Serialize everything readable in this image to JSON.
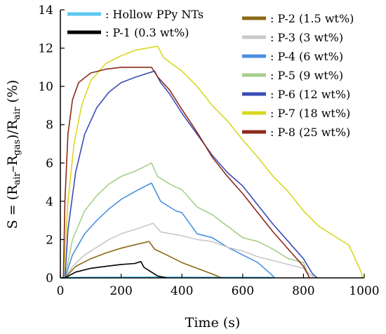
{
  "chart_data": {
    "type": "line",
    "xlabel": "Time (s)",
    "ylabel_parts": {
      "prefix": "S = (R",
      "sub1": "air",
      "dash": "–R",
      "sub2": "gas",
      "mid": ")/R",
      "sub3": "air",
      "suffix": " (%)"
    },
    "xlim": [
      0,
      1000
    ],
    "ylim": [
      0,
      14
    ],
    "x_ticks": [
      0,
      200,
      400,
      600,
      800,
      1000
    ],
    "y_ticks": [
      0,
      2,
      4,
      6,
      8,
      10,
      12,
      14
    ],
    "x_tick_labels": [
      "0",
      "200",
      "400",
      "600",
      "800",
      "1000"
    ],
    "y_tick_labels": [
      "0",
      "2",
      "4",
      "6",
      "8",
      "10",
      "12",
      "14"
    ],
    "grid": false,
    "legend_position": "inside-top",
    "series": [
      {
        "name": ": Hollow PPy NTs",
        "color": "#5bc8f0",
        "points": [
          [
            0,
            0
          ],
          [
            100,
            0.02
          ],
          [
            300,
            0.03
          ],
          [
            500,
            0.02
          ],
          [
            700,
            0.01
          ]
        ]
      },
      {
        "name": ": P-1 (0.3 wt%)",
        "color": "#000000",
        "points": [
          [
            15,
            0
          ],
          [
            50,
            0.3
          ],
          [
            100,
            0.5
          ],
          [
            150,
            0.6
          ],
          [
            200,
            0.7
          ],
          [
            245,
            0.75
          ],
          [
            265,
            0.85
          ],
          [
            275,
            0.55
          ],
          [
            300,
            0.3
          ],
          [
            320,
            0.1
          ],
          [
            350,
            0
          ]
        ]
      },
      {
        "name": ": P-2 (1.5 wt%)",
        "color": "#8b6914",
        "points": [
          [
            15,
            0
          ],
          [
            50,
            0.6
          ],
          [
            100,
            1.0
          ],
          [
            150,
            1.3
          ],
          [
            200,
            1.55
          ],
          [
            250,
            1.75
          ],
          [
            292,
            1.9
          ],
          [
            310,
            1.5
          ],
          [
            350,
            1.2
          ],
          [
            400,
            0.8
          ],
          [
            450,
            0.5
          ],
          [
            500,
            0.2
          ],
          [
            530,
            0
          ]
        ]
      },
      {
        "name": ": P-3 (3 wt%)",
        "color": "#c8c8c8",
        "points": [
          [
            15,
            0
          ],
          [
            40,
            0.6
          ],
          [
            80,
            1.2
          ],
          [
            120,
            1.6
          ],
          [
            160,
            2.0
          ],
          [
            200,
            2.3
          ],
          [
            250,
            2.55
          ],
          [
            305,
            2.85
          ],
          [
            330,
            2.4
          ],
          [
            400,
            2.2
          ],
          [
            450,
            2.0
          ],
          [
            500,
            1.9
          ],
          [
            550,
            1.6
          ],
          [
            600,
            1.4
          ],
          [
            650,
            1.1
          ],
          [
            700,
            0.9
          ],
          [
            750,
            0.7
          ],
          [
            800,
            0.5
          ],
          [
            835,
            0
          ]
        ]
      },
      {
        "name": ": P-4 (6 wt%)",
        "color": "#4a90e2",
        "points": [
          [
            15,
            0
          ],
          [
            40,
            1.2
          ],
          [
            80,
            2.3
          ],
          [
            120,
            3.0
          ],
          [
            160,
            3.6
          ],
          [
            200,
            4.1
          ],
          [
            250,
            4.55
          ],
          [
            300,
            4.95
          ],
          [
            330,
            4.0
          ],
          [
            380,
            3.5
          ],
          [
            400,
            3.4
          ],
          [
            450,
            2.3
          ],
          [
            500,
            2.1
          ],
          [
            550,
            1.6
          ],
          [
            600,
            1.2
          ],
          [
            650,
            0.8
          ],
          [
            700,
            0.1
          ],
          [
            705,
            0
          ]
        ]
      },
      {
        "name": ": P-5 (9 wt%)",
        "color": "#a6cf8a",
        "points": [
          [
            15,
            0
          ],
          [
            40,
            2.0
          ],
          [
            80,
            3.5
          ],
          [
            120,
            4.3
          ],
          [
            160,
            4.9
          ],
          [
            200,
            5.3
          ],
          [
            250,
            5.6
          ],
          [
            300,
            6.0
          ],
          [
            320,
            5.3
          ],
          [
            360,
            4.9
          ],
          [
            400,
            4.6
          ],
          [
            450,
            3.7
          ],
          [
            500,
            3.3
          ],
          [
            550,
            2.7
          ],
          [
            600,
            2.1
          ],
          [
            650,
            1.9
          ],
          [
            700,
            1.5
          ],
          [
            750,
            1.0
          ],
          [
            800,
            0.8
          ],
          [
            820,
            0
          ]
        ]
      },
      {
        "name": ": P-6 (12 wt%)",
        "color": "#3a4db5",
        "points": [
          [
            15,
            0
          ],
          [
            25,
            2.5
          ],
          [
            50,
            5.5
          ],
          [
            80,
            7.5
          ],
          [
            120,
            8.9
          ],
          [
            160,
            9.7
          ],
          [
            200,
            10.2
          ],
          [
            250,
            10.5
          ],
          [
            310,
            10.8
          ],
          [
            330,
            10.2
          ],
          [
            360,
            9.6
          ],
          [
            400,
            8.6
          ],
          [
            450,
            7.5
          ],
          [
            500,
            6.4
          ],
          [
            550,
            5.5
          ],
          [
            600,
            4.8
          ],
          [
            650,
            3.8
          ],
          [
            700,
            2.8
          ],
          [
            750,
            1.9
          ],
          [
            800,
            1.0
          ],
          [
            830,
            0.2
          ],
          [
            845,
            0
          ]
        ]
      },
      {
        "name": ": P-7 (18 wt%)",
        "color": "#d8d820",
        "points": [
          [
            10,
            0
          ],
          [
            25,
            4.0
          ],
          [
            45,
            7.0
          ],
          [
            70,
            9.0
          ],
          [
            100,
            10.3
          ],
          [
            150,
            11.2
          ],
          [
            200,
            11.6
          ],
          [
            250,
            11.9
          ],
          [
            320,
            12.1
          ],
          [
            340,
            11.5
          ],
          [
            400,
            10.8
          ],
          [
            450,
            10.0
          ],
          [
            500,
            9.0
          ],
          [
            550,
            8.2
          ],
          [
            600,
            7.2
          ],
          [
            650,
            6.3
          ],
          [
            700,
            5.3
          ],
          [
            750,
            4.5
          ],
          [
            800,
            3.5
          ],
          [
            850,
            2.7
          ],
          [
            900,
            2.2
          ],
          [
            950,
            1.7
          ],
          [
            990,
            0.3
          ],
          [
            995,
            0
          ]
        ]
      },
      {
        "name": ": P-8 (25 wt%)",
        "color": "#8b2a1a",
        "points": [
          [
            10,
            0
          ],
          [
            15,
            4.0
          ],
          [
            25,
            7.5
          ],
          [
            40,
            9.3
          ],
          [
            60,
            10.2
          ],
          [
            100,
            10.7
          ],
          [
            150,
            10.9
          ],
          [
            200,
            11.0
          ],
          [
            300,
            11.0
          ],
          [
            320,
            10.5
          ],
          [
            360,
            9.8
          ],
          [
            400,
            8.8
          ],
          [
            450,
            7.6
          ],
          [
            500,
            6.3
          ],
          [
            550,
            5.3
          ],
          [
            600,
            4.4
          ],
          [
            650,
            3.4
          ],
          [
            700,
            2.4
          ],
          [
            750,
            1.5
          ],
          [
            800,
            0.6
          ],
          [
            820,
            0
          ]
        ]
      }
    ]
  }
}
